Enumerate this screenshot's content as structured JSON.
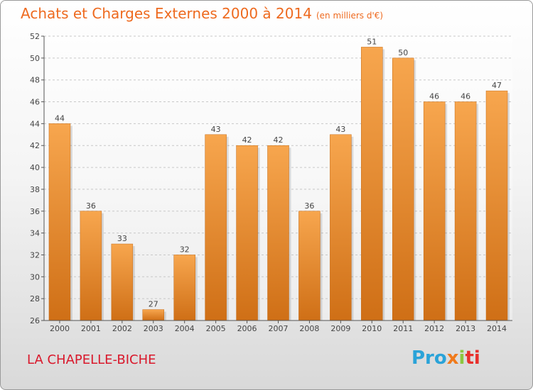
{
  "title": "Achats et Charges Externes 2000 à 2014",
  "unit": "(en milliers d'€)",
  "location": "LA CHAPELLE-BICHE",
  "logo": {
    "p1": "Pro",
    "p2": "x",
    "p3": "i",
    "p4": "ti"
  },
  "colors": {
    "bar_light": "#f7a64e",
    "bar_dark": "#cf6f16",
    "title": "#ee6a1f",
    "location": "#d9182b"
  },
  "chart_data": {
    "type": "bar",
    "categories": [
      "2000",
      "2001",
      "2002",
      "2003",
      "2004",
      "2005",
      "2006",
      "2007",
      "2008",
      "2009",
      "2010",
      "2011",
      "2012",
      "2013",
      "2014"
    ],
    "values": [
      44,
      36,
      33,
      27,
      32,
      43,
      42,
      42,
      36,
      43,
      51,
      50,
      46,
      46,
      47
    ],
    "ylim": [
      26,
      52
    ],
    "yticks": [
      26,
      28,
      30,
      32,
      34,
      36,
      38,
      40,
      42,
      44,
      46,
      48,
      50,
      52
    ],
    "grid": true,
    "title": "Achats et Charges Externes 2000 à 2014",
    "xlabel": "",
    "ylabel": ""
  }
}
